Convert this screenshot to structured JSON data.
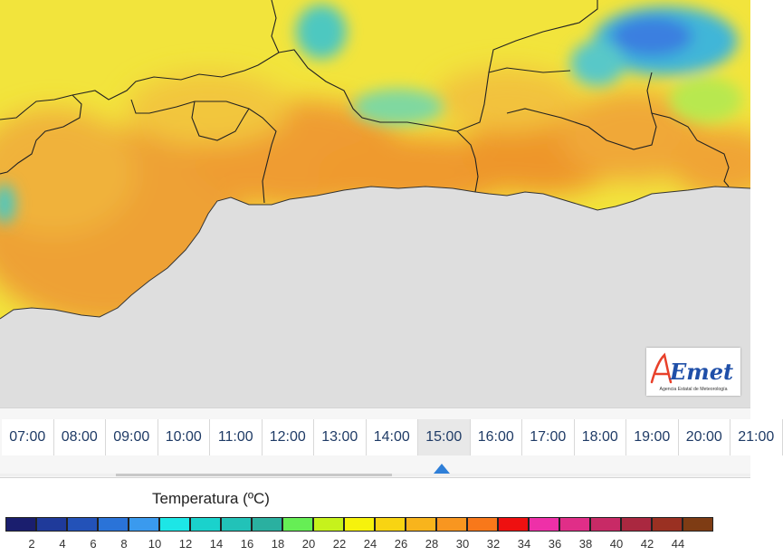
{
  "map": {
    "land_colors": {
      "yellow": "#f2e43c",
      "orange": "#f2b23a",
      "deep_orange": "#ec9a2e",
      "cyan": "#4ec8c0",
      "blue": "#3b7fe0",
      "sea": "#dedede"
    }
  },
  "logo": {
    "brand": "AEmet",
    "subtitle": "Agencia Estatal de Meteorología"
  },
  "timeline": {
    "hours": [
      "07:00",
      "08:00",
      "09:00",
      "10:00",
      "11:00",
      "12:00",
      "13:00",
      "14:00",
      "15:00",
      "16:00",
      "17:00",
      "18:00",
      "19:00",
      "20:00",
      "21:00"
    ],
    "selected": "15:00",
    "pointer_color": "#2f7fd8"
  },
  "legend": {
    "title": "Temperatura (ºC)",
    "ticks": [
      "2",
      "4",
      "6",
      "8",
      "10",
      "12",
      "14",
      "16",
      "18",
      "20",
      "22",
      "24",
      "26",
      "28",
      "30",
      "32",
      "34",
      "36",
      "38",
      "40",
      "42",
      "44"
    ],
    "colors": [
      "#1a1e6e",
      "#1f3a9a",
      "#2352b8",
      "#2a73d8",
      "#3a9aee",
      "#1de6e6",
      "#1ad2cc",
      "#22c2b8",
      "#2ab0a0",
      "#66ee55",
      "#c6f21c",
      "#f6f20c",
      "#f8d412",
      "#f8b41c",
      "#f89620",
      "#f8781a",
      "#ee1010",
      "#ee30a8",
      "#e02e88",
      "#c82a66",
      "#aa2840",
      "#9a3022",
      "#7e3c14"
    ]
  }
}
